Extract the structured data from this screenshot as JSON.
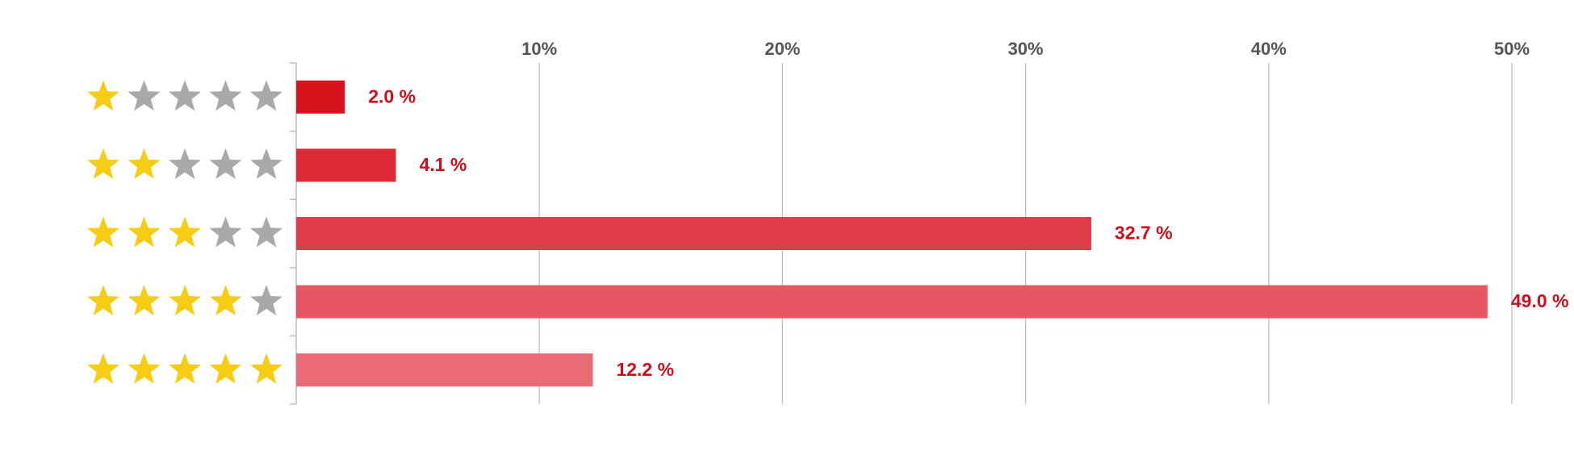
{
  "chart_data": {
    "type": "bar",
    "orientation": "horizontal",
    "categories": [
      null,
      null,
      null,
      null,
      null
    ],
    "ratings": [
      1,
      2,
      3,
      4,
      5
    ],
    "rating_max": 5,
    "values": [
      2.0,
      4.1,
      32.7,
      49.0,
      12.2
    ],
    "value_labels": [
      "2.0 %",
      "4.1 %",
      "32.7 %",
      "49.0 %",
      "12.2 %"
    ],
    "colors": [
      "#d7141e",
      "#de2a36",
      "#e03c49",
      "#e55862",
      "#e96b75"
    ],
    "xlim": [
      0,
      50
    ],
    "xticks": [
      {
        "value": 10,
        "label": "10%"
      },
      {
        "value": 20,
        "label": "20%"
      },
      {
        "value": 30,
        "label": "30%"
      },
      {
        "value": 40,
        "label": "40%"
      },
      {
        "value": 50,
        "label": "50%"
      }
    ],
    "grid": true
  }
}
